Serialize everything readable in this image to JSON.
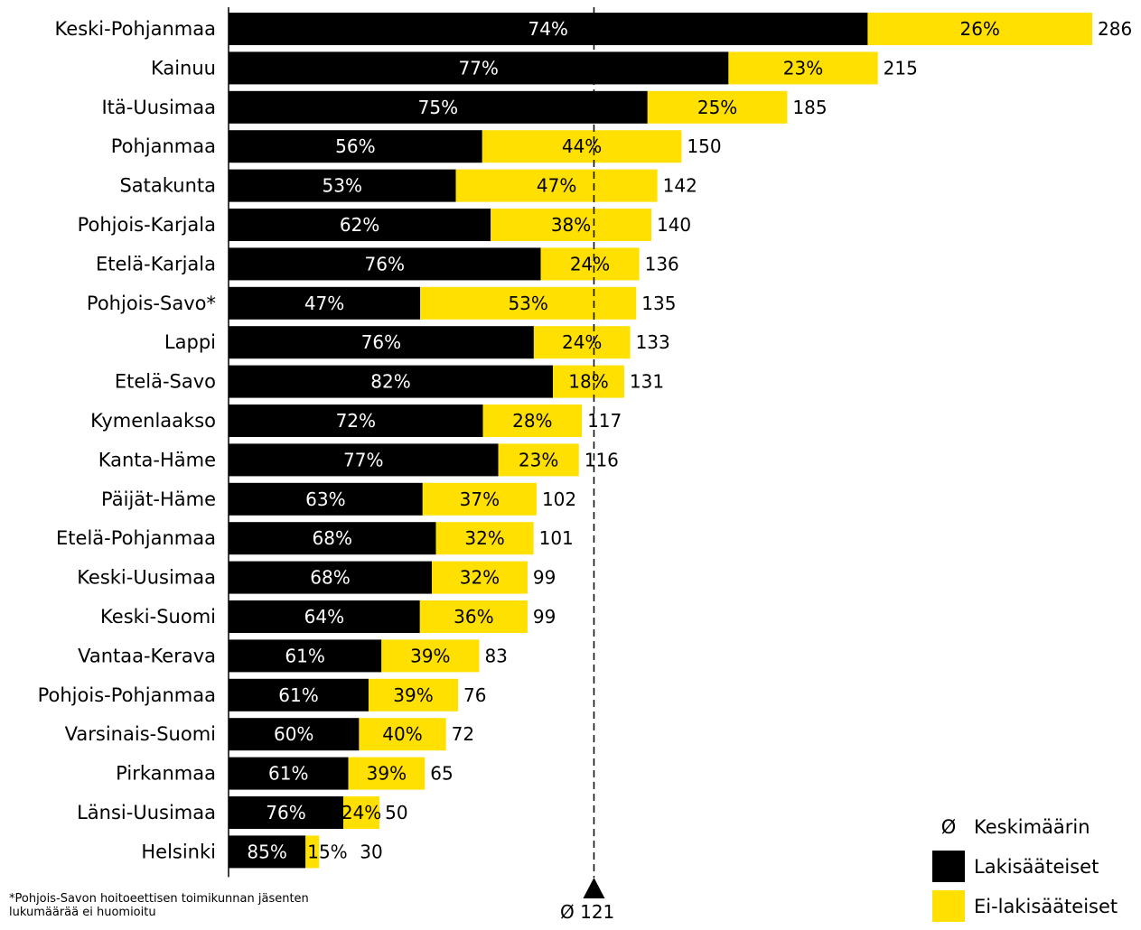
{
  "chart_data": {
    "type": "bar",
    "orientation": "horizontal",
    "stacked": true,
    "categories": [
      "Keski-Pohjanmaa",
      "Kainuu",
      "Itä-Uusimaa",
      "Pohjanmaa",
      "Satakunta",
      "Pohjois-Karjala",
      "Etelä-Karjala",
      "Pohjois-Savo*",
      "Lappi",
      "Etelä-Savo",
      "Kymenlaakso",
      "Kanta-Häme",
      "Päijät-Häme",
      "Etelä-Pohjanmaa",
      "Keski-Uusimaa",
      "Keski-Suomi",
      "Vantaa-Kerava",
      "Pohjois-Pohjanmaa",
      "Varsinais-Suomi",
      "Pirkanmaa",
      "Länsi-Uusimaa",
      "Helsinki"
    ],
    "totals": [
      286,
      215,
      185,
      150,
      142,
      140,
      136,
      135,
      133,
      131,
      117,
      116,
      102,
      101,
      99,
      99,
      83,
      76,
      72,
      65,
      50,
      30
    ],
    "series": [
      {
        "name": "Lakisääteiset",
        "color": "#000000",
        "percent": [
          74,
          77,
          75,
          56,
          53,
          62,
          76,
          47,
          76,
          82,
          72,
          77,
          63,
          68,
          68,
          64,
          61,
          61,
          60,
          61,
          76,
          85
        ]
      },
      {
        "name": "Ei-lakisääteiset",
        "color": "#FFE000",
        "percent": [
          26,
          23,
          25,
          44,
          47,
          38,
          24,
          53,
          24,
          18,
          28,
          23,
          37,
          32,
          32,
          36,
          39,
          39,
          40,
          39,
          24,
          15
        ]
      }
    ],
    "average": {
      "value": 121,
      "label": "Ø 121"
    },
    "xlim": [
      0,
      286
    ]
  },
  "legend": {
    "avg_symbol": "Ø",
    "avg_label": "Keskimäärin",
    "lakisaateiset_label": "Lakisääteiset",
    "ei_lakisaateiset_label": "Ei-lakisääteiset"
  },
  "footnote": "*Pohjois-Savon hoitoeettisen toimikunnan jäsenten lukumäärää ei huomioitu"
}
